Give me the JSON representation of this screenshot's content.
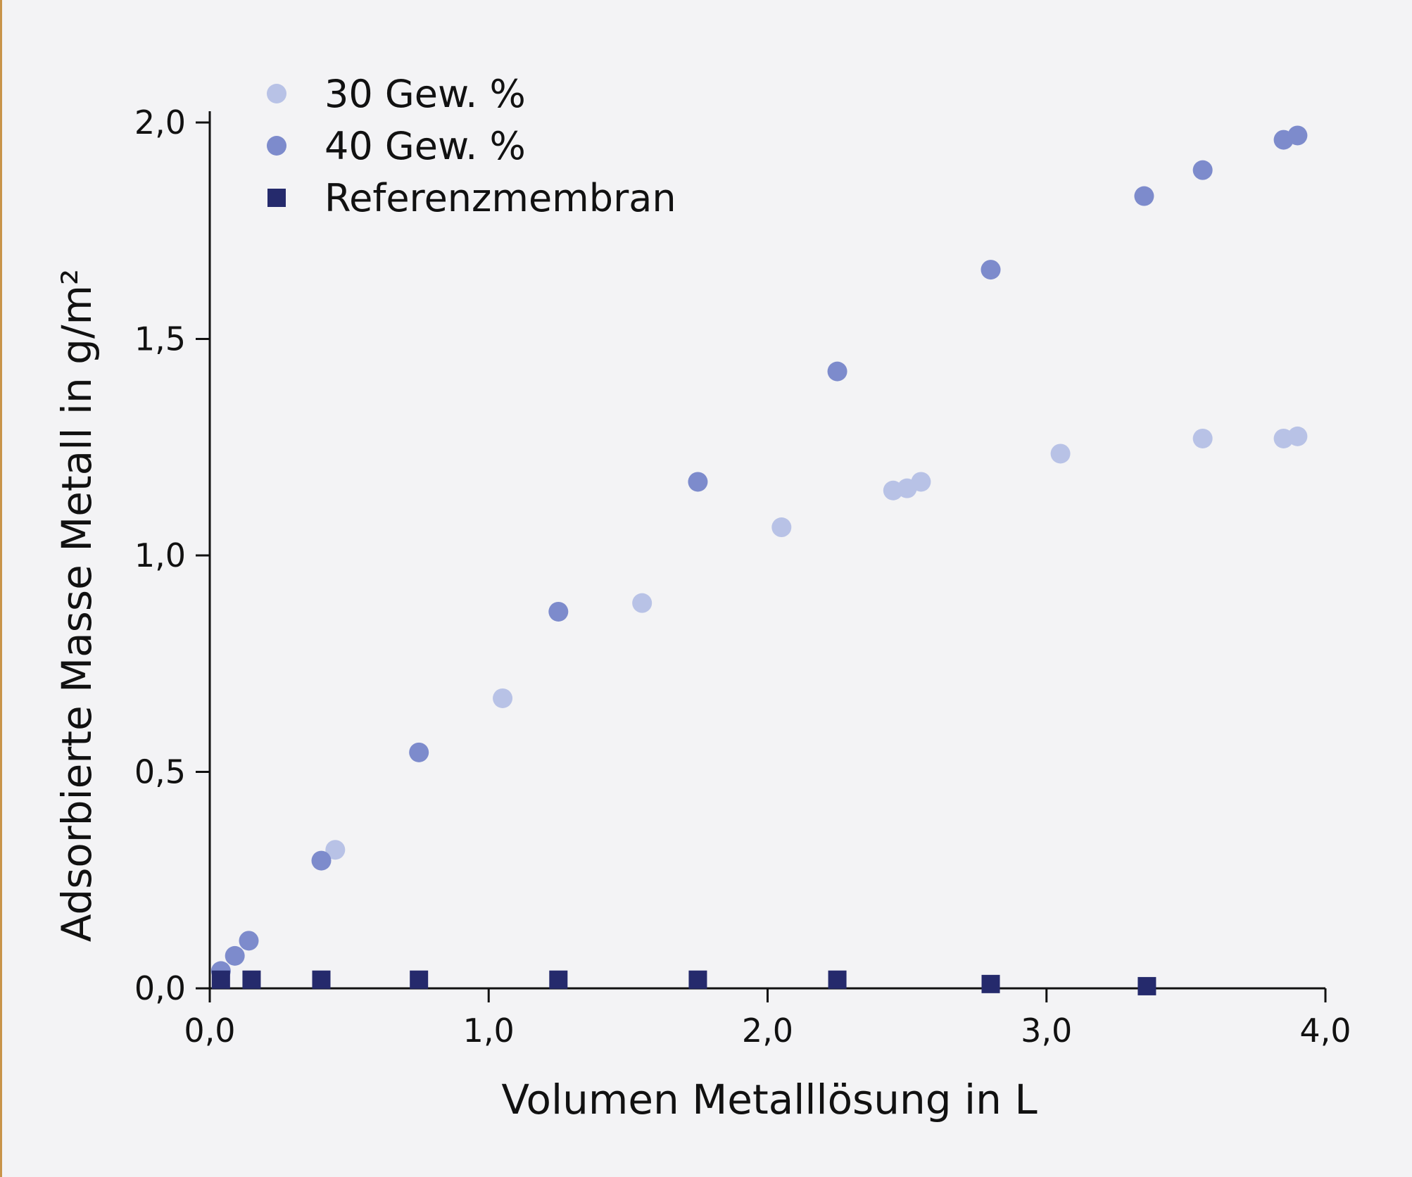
{
  "chart_data": {
    "type": "scatter",
    "xlabel": "Volumen Metalllösung in L",
    "ylabel": "Adsorbierte Masse Metall in g/m²",
    "xlim": [
      0,
      4.0
    ],
    "ylim": [
      0,
      2.0
    ],
    "x_ticks": [
      "0,0",
      "1,0",
      "2,0",
      "3,0",
      "4,0"
    ],
    "y_ticks": [
      "0,0",
      "0,5",
      "1,0",
      "1,5",
      "2,0"
    ],
    "legend_position": "top-left",
    "grid": false,
    "series": [
      {
        "name": "30 Gew. %",
        "marker": "circle",
        "color": "#b8c2e6",
        "points": [
          {
            "x": 0.45,
            "y": 0.32
          },
          {
            "x": 1.05,
            "y": 0.67
          },
          {
            "x": 1.55,
            "y": 0.89
          },
          {
            "x": 2.05,
            "y": 1.065
          },
          {
            "x": 2.45,
            "y": 1.15
          },
          {
            "x": 2.5,
            "y": 1.155
          },
          {
            "x": 2.55,
            "y": 1.17
          },
          {
            "x": 3.05,
            "y": 1.235
          },
          {
            "x": 3.56,
            "y": 1.27
          },
          {
            "x": 3.85,
            "y": 1.27
          },
          {
            "x": 3.9,
            "y": 1.275
          }
        ]
      },
      {
        "name": "40 Gew. %",
        "marker": "circle",
        "color": "#7d8bcc",
        "points": [
          {
            "x": 0.04,
            "y": 0.04
          },
          {
            "x": 0.09,
            "y": 0.075
          },
          {
            "x": 0.14,
            "y": 0.11
          },
          {
            "x": 0.4,
            "y": 0.295
          },
          {
            "x": 0.75,
            "y": 0.545
          },
          {
            "x": 1.25,
            "y": 0.87
          },
          {
            "x": 1.75,
            "y": 1.17
          },
          {
            "x": 2.25,
            "y": 1.425
          },
          {
            "x": 2.8,
            "y": 1.66
          },
          {
            "x": 3.35,
            "y": 1.83
          },
          {
            "x": 3.56,
            "y": 1.89
          },
          {
            "x": 3.85,
            "y": 1.96
          },
          {
            "x": 3.9,
            "y": 1.97
          }
        ]
      },
      {
        "name": "Referenzmembran",
        "marker": "square",
        "color": "#252a6c",
        "points": [
          {
            "x": 0.04,
            "y": 0.02
          },
          {
            "x": 0.15,
            "y": 0.02
          },
          {
            "x": 0.4,
            "y": 0.02
          },
          {
            "x": 0.75,
            "y": 0.02
          },
          {
            "x": 1.25,
            "y": 0.02
          },
          {
            "x": 1.75,
            "y": 0.02
          },
          {
            "x": 2.25,
            "y": 0.02
          },
          {
            "x": 2.8,
            "y": 0.01
          },
          {
            "x": 3.36,
            "y": 0.005
          }
        ]
      }
    ]
  }
}
